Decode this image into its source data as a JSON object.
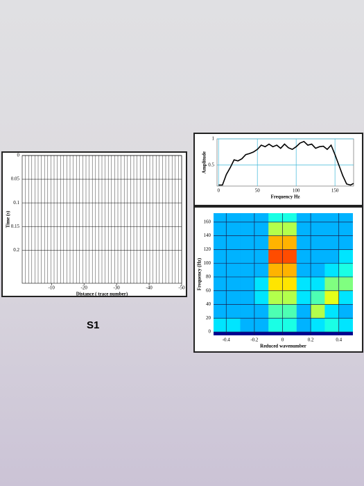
{
  "caption": "S1",
  "chart_data": [
    {
      "type": "wiggle",
      "xlabel": "Distance ( trace number)",
      "ylabel": "Time (s)",
      "xlim": [
        -1,
        -50
      ],
      "xticks": [
        -10,
        -20,
        -30,
        -40,
        -50
      ],
      "ylim": [
        0,
        0.27
      ],
      "yticks": [
        0,
        0.05,
        0.1,
        0.15,
        0.2
      ],
      "y_inverted": true
    },
    {
      "type": "line",
      "xlabel": "Frequency Hz",
      "ylabel": "Amplitude",
      "color": "#000000",
      "grid": true,
      "xlim": [
        -2,
        174
      ],
      "xticks": [
        0,
        50,
        100,
        150
      ],
      "ylim": [
        0.1,
        1
      ],
      "yticks": [
        0.5,
        1
      ],
      "x": [
        0,
        5,
        10,
        15,
        20,
        25,
        30,
        35,
        40,
        45,
        50,
        55,
        60,
        65,
        70,
        75,
        80,
        85,
        90,
        95,
        100,
        105,
        110,
        115,
        120,
        125,
        130,
        135,
        140,
        145,
        150,
        155,
        160,
        165,
        170,
        174
      ],
      "values": [
        0.12,
        0.12,
        0.32,
        0.45,
        0.6,
        0.58,
        0.62,
        0.7,
        0.72,
        0.75,
        0.8,
        0.88,
        0.85,
        0.9,
        0.85,
        0.88,
        0.82,
        0.9,
        0.83,
        0.8,
        0.85,
        0.92,
        0.95,
        0.88,
        0.9,
        0.82,
        0.85,
        0.86,
        0.8,
        0.88,
        0.7,
        0.5,
        0.3,
        0.14,
        0.12,
        0.15
      ]
    },
    {
      "type": "heatmap",
      "xlabel": "Reduced wavenumber",
      "ylabel": "Frequency (Hz)",
      "xlim": [
        -0.49,
        0.5
      ],
      "xticks": [
        -0.4,
        -0.2,
        0,
        0.2,
        0.4
      ],
      "ylim": [
        -5,
        173
      ],
      "yticks": [
        0,
        20,
        40,
        60,
        80,
        100,
        120,
        140,
        160
      ],
      "x": [
        -0.45,
        -0.35,
        -0.25,
        -0.15,
        -0.05,
        0.05,
        0.15,
        0.25,
        0.35,
        0.45
      ],
      "y": [
        10,
        30,
        50,
        70,
        90,
        110,
        130,
        150,
        170
      ],
      "z": [
        [
          0.35,
          0.35,
          0.3,
          0.3,
          0.4,
          0.4,
          0.3,
          0.35,
          0.4,
          0.35
        ],
        [
          0.3,
          0.3,
          0.3,
          0.3,
          0.45,
          0.45,
          0.3,
          0.55,
          0.35,
          0.3
        ],
        [
          0.3,
          0.3,
          0.3,
          0.35,
          0.55,
          0.55,
          0.35,
          0.45,
          0.6,
          0.35
        ],
        [
          0.3,
          0.3,
          0.3,
          0.35,
          0.65,
          0.65,
          0.35,
          0.35,
          0.5,
          0.5
        ],
        [
          0.3,
          0.3,
          0.3,
          0.3,
          0.7,
          0.7,
          0.3,
          0.3,
          0.35,
          0.4
        ],
        [
          0.3,
          0.3,
          0.3,
          0.3,
          0.8,
          0.8,
          0.3,
          0.3,
          0.3,
          0.35
        ],
        [
          0.3,
          0.3,
          0.3,
          0.3,
          0.7,
          0.7,
          0.3,
          0.3,
          0.3,
          0.3
        ],
        [
          0.3,
          0.3,
          0.3,
          0.3,
          0.55,
          0.55,
          0.3,
          0.3,
          0.3,
          0.3
        ],
        [
          0.3,
          0.3,
          0.3,
          0.3,
          0.4,
          0.4,
          0.3,
          0.3,
          0.3,
          0.3
        ]
      ]
    }
  ]
}
